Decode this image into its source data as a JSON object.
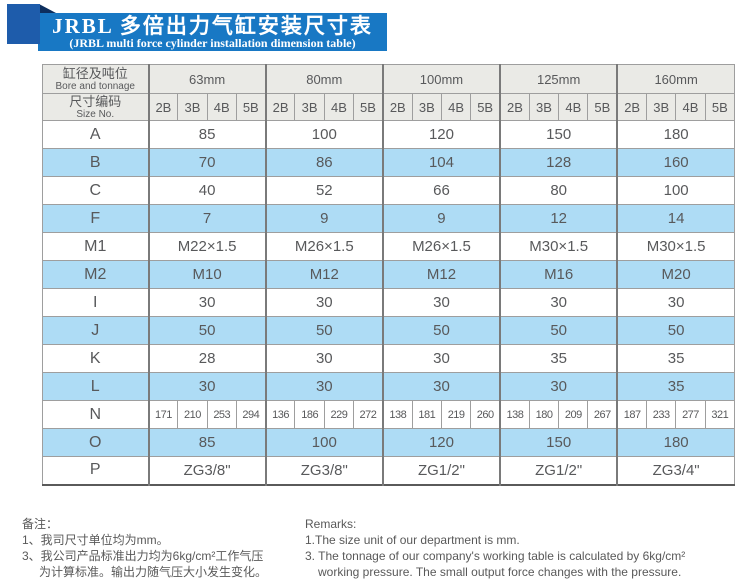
{
  "banner": {
    "title_cn": "JRBL 多倍出力气缸安装尺寸表",
    "title_en": "(JRBL multi force cylinder installation dimension table)"
  },
  "table": {
    "corner": {
      "bore_cn": "缸径及吨位",
      "bore_en": "Bore and tonnage",
      "size_cn": "尺寸编码",
      "size_en": "Size No."
    },
    "groups": [
      "63mm",
      "80mm",
      "100mm",
      "125mm",
      "160mm"
    ],
    "subcols": [
      "2B",
      "3B",
      "4B",
      "5B"
    ],
    "rows": [
      {
        "label": "A",
        "type": "merged",
        "values": [
          "85",
          "100",
          "120",
          "150",
          "180"
        ]
      },
      {
        "label": "B",
        "type": "merged",
        "values": [
          "70",
          "86",
          "104",
          "128",
          "160"
        ]
      },
      {
        "label": "C",
        "type": "merged",
        "values": [
          "40",
          "52",
          "66",
          "80",
          "100"
        ]
      },
      {
        "label": "F",
        "type": "merged",
        "values": [
          "7",
          "9",
          "9",
          "12",
          "14"
        ]
      },
      {
        "label": "M1",
        "type": "merged",
        "values": [
          "M22×1.5",
          "M26×1.5",
          "M26×1.5",
          "M30×1.5",
          "M30×1.5"
        ]
      },
      {
        "label": "M2",
        "type": "merged",
        "values": [
          "M10",
          "M12",
          "M12",
          "M16",
          "M20"
        ]
      },
      {
        "label": "I",
        "type": "merged",
        "values": [
          "30",
          "30",
          "30",
          "30",
          "30"
        ]
      },
      {
        "label": "J",
        "type": "merged",
        "values": [
          "50",
          "50",
          "50",
          "50",
          "50"
        ]
      },
      {
        "label": "K",
        "type": "merged",
        "values": [
          "28",
          "30",
          "30",
          "35",
          "35"
        ]
      },
      {
        "label": "L",
        "type": "merged",
        "values": [
          "30",
          "30",
          "30",
          "30",
          "35"
        ]
      },
      {
        "label": "N",
        "type": "sub",
        "values": [
          "171",
          "210",
          "253",
          "294",
          "136",
          "186",
          "229",
          "272",
          "138",
          "181",
          "219",
          "260",
          "138",
          "180",
          "209",
          "267",
          "187",
          "233",
          "277",
          "321"
        ]
      },
      {
        "label": "O",
        "type": "merged",
        "values": [
          "85",
          "100",
          "120",
          "150",
          "180"
        ]
      },
      {
        "label": "P",
        "type": "merged",
        "values": [
          "ZG3/8\"",
          "ZG3/8\"",
          "ZG1/2\"",
          "ZG1/2\"",
          "ZG3/4\""
        ]
      }
    ]
  },
  "notes": {
    "cn": [
      "备注：",
      "1、我司尺寸单位均为mm。",
      "3、我公司产品标准出力均为6kg/cm²工作气压",
      "为计算标准。输出力随气压大小发生变化。"
    ],
    "en": [
      "Remarks:",
      "1.The size unit of our department is mm.",
      "3. The tonnage of our company's working table is calculated by 6kg/cm²",
      "working pressure. The small output force changes with the pressure."
    ]
  },
  "colors": {
    "banner_blue": "#1878c4",
    "ribbon_dark_blue": "#1e5cab",
    "fold_navy": "#0d2f5e",
    "row_highlight_blue": "#aedcf5",
    "header_gray": "#eaeae6",
    "text_gray": "#58595b"
  }
}
